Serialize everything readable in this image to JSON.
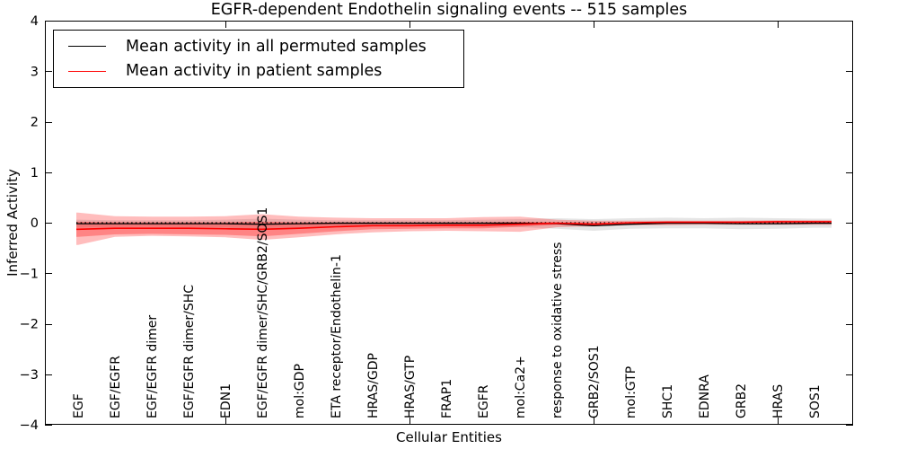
{
  "figure": {
    "title": "EGFR-dependent Endothelin signaling events -- 515 samples",
    "xlabel": "Cellular Entities",
    "ylabel": "Inferred Activity"
  },
  "legend": {
    "items": [
      {
        "label": "Mean activity in all permuted samples",
        "color": "#000000"
      },
      {
        "label": "Mean activity in patient samples",
        "color": "#ff0000"
      }
    ]
  },
  "chart_data": {
    "type": "line",
    "title": "EGFR-dependent Endothelin signaling events -- 515 samples",
    "xlabel": "Cellular Entities",
    "ylabel": "Inferred Activity",
    "ylim": [
      -4,
      4
    ],
    "y_ticks": [
      4,
      3,
      2,
      1,
      0,
      -1,
      -2,
      -3,
      -4
    ],
    "x_tick_indices": [
      4,
      9,
      14,
      19
    ],
    "grid": false,
    "legend_position": "upper left",
    "zero_line": {
      "y": 0,
      "style": "dotted",
      "color": "#000000"
    },
    "categories": [
      "EGF",
      "EGF/EGFR",
      "EGF/EGFR dimer",
      "EGF/EGFR dimer/SHC",
      "EDN1",
      "EGF/EGFR dimer/SHC/GRB2/SOS1",
      "mol:GDP",
      "ETA receptor/Endothelin-1",
      "HRAS/GDP",
      "HRAS/GTP",
      "FRAP1",
      "EGFR",
      "mol:Ca2+",
      "response to oxidative stress",
      "GRB2/SOS1",
      "mol:GTP",
      "SHC1",
      "EDNRA",
      "GRB2",
      "HRAS",
      "SOS1"
    ],
    "series": [
      {
        "name": "Mean activity in all permuted samples",
        "color": "#000000",
        "style": "solid",
        "values": [
          -0.02,
          -0.02,
          -0.02,
          -0.02,
          -0.02,
          -0.03,
          -0.02,
          -0.01,
          -0.01,
          -0.01,
          -0.01,
          -0.01,
          -0.01,
          -0.02,
          -0.06,
          -0.03,
          -0.01,
          -0.01,
          -0.02,
          -0.02,
          -0.01
        ]
      },
      {
        "name": "Mean activity in patient samples",
        "color": "#ff0000",
        "style": "solid",
        "values": [
          -0.13,
          -0.11,
          -0.11,
          -0.11,
          -0.12,
          -0.13,
          -0.11,
          -0.08,
          -0.06,
          -0.06,
          -0.05,
          -0.05,
          -0.03,
          -0.01,
          -0.03,
          0.0,
          0.01,
          0.01,
          0.01,
          0.02,
          0.02
        ]
      }
    ],
    "bands": [
      {
        "name": "permuted-samples-std-band",
        "color": "#000000",
        "opacity": 0.1,
        "upper": [
          0.06,
          0.05,
          0.05,
          0.05,
          0.06,
          0.08,
          0.06,
          0.05,
          0.05,
          0.05,
          0.05,
          0.06,
          0.07,
          0.09,
          0.07,
          0.09,
          0.1,
          0.09,
          0.1,
          0.09,
          0.08
        ],
        "lower": [
          -0.1,
          -0.09,
          -0.08,
          -0.09,
          -0.1,
          -0.13,
          -0.1,
          -0.08,
          -0.07,
          -0.07,
          -0.07,
          -0.08,
          -0.09,
          -0.12,
          -0.16,
          -0.12,
          -0.11,
          -0.11,
          -0.13,
          -0.12,
          -0.1
        ]
      },
      {
        "name": "patient-samples-outer-band",
        "color": "#ff0000",
        "opacity": 0.26,
        "upper": [
          0.2,
          0.13,
          0.12,
          0.12,
          0.13,
          0.17,
          0.12,
          0.1,
          0.09,
          0.09,
          0.09,
          0.11,
          0.12,
          0.06,
          0.04,
          0.04,
          0.04,
          0.04,
          0.04,
          0.05,
          0.05
        ],
        "lower": [
          -0.44,
          -0.28,
          -0.26,
          -0.27,
          -0.29,
          -0.34,
          -0.29,
          -0.23,
          -0.19,
          -0.17,
          -0.16,
          -0.17,
          -0.18,
          -0.09,
          -0.07,
          -0.05,
          -0.05,
          -0.04,
          -0.04,
          -0.04,
          -0.04
        ]
      },
      {
        "name": "patient-samples-inner-band",
        "color": "#ff0000",
        "opacity": 0.3,
        "upper": [
          0.02,
          0.01,
          0.01,
          0.01,
          0.01,
          0.02,
          0.01,
          0.01,
          0.01,
          0.01,
          0.01,
          0.01,
          0.02,
          0.01,
          0.0,
          0.01,
          0.02,
          0.02,
          0.02,
          0.03,
          0.03
        ],
        "lower": [
          -0.28,
          -0.23,
          -0.22,
          -0.23,
          -0.24,
          -0.27,
          -0.22,
          -0.17,
          -0.13,
          -0.12,
          -0.11,
          -0.11,
          -0.08,
          -0.04,
          -0.05,
          -0.02,
          -0.01,
          -0.01,
          -0.01,
          -0.01,
          -0.01
        ]
      }
    ]
  }
}
